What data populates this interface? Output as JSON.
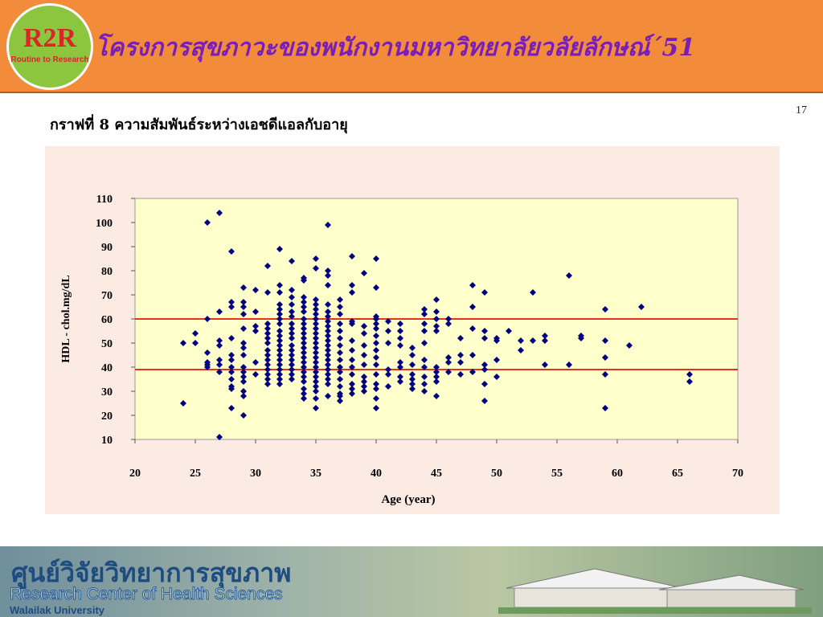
{
  "header": {
    "title": "โครงการสุขภาวะของพนักงานมหาวิทยาลัยวลัยลักษณ์´51",
    "logo_text": "R2R",
    "logo_ring_text": "Routine to Research"
  },
  "slide": {
    "page_number": "17",
    "subtitle": "กราฟที่ 8 ความสัมพันธ์ระหว่างเอชดีแอลกับอายุ"
  },
  "chart_data": {
    "type": "scatter",
    "title": "",
    "xlabel": "Age (year)",
    "ylabel": "HDL - chol.mg/dL",
    "xlim": [
      20,
      70
    ],
    "ylim": [
      10,
      110
    ],
    "xticks": [
      "20",
      "25",
      "30",
      "35",
      "40",
      "45",
      "50",
      "55",
      "60",
      "65",
      "70"
    ],
    "yticks": [
      "10",
      "20",
      "30",
      "40",
      "50",
      "60",
      "70",
      "80",
      "90",
      "100",
      "110"
    ],
    "reference_lines": [
      {
        "y": 60
      },
      {
        "y": 39
      }
    ],
    "colors": {
      "points": "#000080",
      "lines": "#e0361a",
      "plot_bg": "#ffffcc"
    },
    "points": [
      [
        24,
        50
      ],
      [
        24,
        25
      ],
      [
        25,
        54
      ],
      [
        25,
        50
      ],
      [
        26,
        100
      ],
      [
        26,
        60
      ],
      [
        26,
        46
      ],
      [
        26,
        42
      ],
      [
        26,
        41
      ],
      [
        26,
        40
      ],
      [
        27,
        104
      ],
      [
        27,
        63
      ],
      [
        27,
        51
      ],
      [
        27,
        49
      ],
      [
        27,
        43
      ],
      [
        27,
        41
      ],
      [
        27,
        38
      ],
      [
        27,
        11
      ],
      [
        28,
        88
      ],
      [
        28,
        67
      ],
      [
        28,
        65
      ],
      [
        28,
        52
      ],
      [
        28,
        45
      ],
      [
        28,
        43
      ],
      [
        28,
        40
      ],
      [
        28,
        38
      ],
      [
        28,
        35
      ],
      [
        28,
        32
      ],
      [
        28,
        31
      ],
      [
        28,
        23
      ],
      [
        29,
        73
      ],
      [
        29,
        67
      ],
      [
        29,
        65
      ],
      [
        29,
        62
      ],
      [
        29,
        56
      ],
      [
        29,
        50
      ],
      [
        29,
        48
      ],
      [
        29,
        45
      ],
      [
        29,
        40
      ],
      [
        29,
        38
      ],
      [
        29,
        36
      ],
      [
        29,
        34
      ],
      [
        29,
        30
      ],
      [
        29,
        28
      ],
      [
        29,
        20
      ],
      [
        30,
        72
      ],
      [
        30,
        63
      ],
      [
        30,
        57
      ],
      [
        30,
        55
      ],
      [
        30,
        42
      ],
      [
        30,
        37
      ],
      [
        31,
        82
      ],
      [
        31,
        71
      ],
      [
        31,
        58
      ],
      [
        31,
        56
      ],
      [
        31,
        54
      ],
      [
        31,
        52
      ],
      [
        31,
        50
      ],
      [
        31,
        47
      ],
      [
        31,
        45
      ],
      [
        31,
        43
      ],
      [
        31,
        41
      ],
      [
        31,
        39
      ],
      [
        31,
        37
      ],
      [
        31,
        35
      ],
      [
        31,
        33
      ],
      [
        32,
        89
      ],
      [
        32,
        74
      ],
      [
        32,
        71
      ],
      [
        32,
        66
      ],
      [
        32,
        64
      ],
      [
        32,
        62
      ],
      [
        32,
        60
      ],
      [
        32,
        58
      ],
      [
        32,
        55
      ],
      [
        32,
        53
      ],
      [
        32,
        51
      ],
      [
        32,
        49
      ],
      [
        32,
        47
      ],
      [
        32,
        45
      ],
      [
        32,
        43
      ],
      [
        32,
        41
      ],
      [
        32,
        39
      ],
      [
        32,
        37
      ],
      [
        32,
        35
      ],
      [
        32,
        33
      ],
      [
        33,
        84
      ],
      [
        33,
        72
      ],
      [
        33,
        69
      ],
      [
        33,
        66
      ],
      [
        33,
        63
      ],
      [
        33,
        61
      ],
      [
        33,
        58
      ],
      [
        33,
        56
      ],
      [
        33,
        54
      ],
      [
        33,
        52
      ],
      [
        33,
        49
      ],
      [
        33,
        47
      ],
      [
        33,
        45
      ],
      [
        33,
        43
      ],
      [
        33,
        41
      ],
      [
        33,
        39
      ],
      [
        33,
        37
      ],
      [
        33,
        35
      ],
      [
        34,
        77
      ],
      [
        34,
        76
      ],
      [
        34,
        69
      ],
      [
        34,
        67
      ],
      [
        34,
        65
      ],
      [
        34,
        63
      ],
      [
        34,
        60
      ],
      [
        34,
        58
      ],
      [
        34,
        56
      ],
      [
        34,
        54
      ],
      [
        34,
        52
      ],
      [
        34,
        50
      ],
      [
        34,
        48
      ],
      [
        34,
        46
      ],
      [
        34,
        44
      ],
      [
        34,
        42
      ],
      [
        34,
        40
      ],
      [
        34,
        38
      ],
      [
        34,
        36
      ],
      [
        34,
        34
      ],
      [
        34,
        31
      ],
      [
        34,
        29
      ],
      [
        34,
        27
      ],
      [
        35,
        85
      ],
      [
        35,
        81
      ],
      [
        35,
        68
      ],
      [
        35,
        66
      ],
      [
        35,
        64
      ],
      [
        35,
        62
      ],
      [
        35,
        60
      ],
      [
        35,
        58
      ],
      [
        35,
        56
      ],
      [
        35,
        54
      ],
      [
        35,
        52
      ],
      [
        35,
        50
      ],
      [
        35,
        48
      ],
      [
        35,
        46
      ],
      [
        35,
        44
      ],
      [
        35,
        42
      ],
      [
        35,
        40
      ],
      [
        35,
        38
      ],
      [
        35,
        36
      ],
      [
        35,
        34
      ],
      [
        35,
        32
      ],
      [
        35,
        30
      ],
      [
        35,
        27
      ],
      [
        35,
        23
      ],
      [
        36,
        99
      ],
      [
        36,
        80
      ],
      [
        36,
        78
      ],
      [
        36,
        74
      ],
      [
        36,
        66
      ],
      [
        36,
        63
      ],
      [
        36,
        61
      ],
      [
        36,
        59
      ],
      [
        36,
        57
      ],
      [
        36,
        55
      ],
      [
        36,
        53
      ],
      [
        36,
        51
      ],
      [
        36,
        49
      ],
      [
        36,
        47
      ],
      [
        36,
        45
      ],
      [
        36,
        43
      ],
      [
        36,
        41
      ],
      [
        36,
        39
      ],
      [
        36,
        37
      ],
      [
        36,
        35
      ],
      [
        36,
        33
      ],
      [
        36,
        28
      ],
      [
        37,
        68
      ],
      [
        37,
        65
      ],
      [
        37,
        62
      ],
      [
        37,
        58
      ],
      [
        37,
        55
      ],
      [
        37,
        52
      ],
      [
        37,
        49
      ],
      [
        37,
        46
      ],
      [
        37,
        43
      ],
      [
        37,
        40
      ],
      [
        37,
        38
      ],
      [
        37,
        35
      ],
      [
        37,
        32
      ],
      [
        37,
        29
      ],
      [
        37,
        28
      ],
      [
        37,
        26
      ],
      [
        38,
        86
      ],
      [
        38,
        74
      ],
      [
        38,
        71
      ],
      [
        38,
        59
      ],
      [
        38,
        58
      ],
      [
        38,
        51
      ],
      [
        38,
        47
      ],
      [
        38,
        43
      ],
      [
        38,
        40
      ],
      [
        38,
        37
      ],
      [
        38,
        33
      ],
      [
        38,
        31
      ],
      [
        38,
        29
      ],
      [
        39,
        79
      ],
      [
        39,
        57
      ],
      [
        39,
        54
      ],
      [
        39,
        49
      ],
      [
        39,
        45
      ],
      [
        39,
        41
      ],
      [
        39,
        36
      ],
      [
        39,
        34
      ],
      [
        39,
        32
      ],
      [
        39,
        30
      ],
      [
        40,
        85
      ],
      [
        40,
        73
      ],
      [
        40,
        61
      ],
      [
        40,
        60
      ],
      [
        40,
        58
      ],
      [
        40,
        56
      ],
      [
        40,
        53
      ],
      [
        40,
        50
      ],
      [
        40,
        47
      ],
      [
        40,
        44
      ],
      [
        40,
        41
      ],
      [
        40,
        37
      ],
      [
        40,
        33
      ],
      [
        40,
        31
      ],
      [
        40,
        27
      ],
      [
        40,
        23
      ],
      [
        41,
        59
      ],
      [
        41,
        55
      ],
      [
        41,
        50
      ],
      [
        41,
        39
      ],
      [
        41,
        37
      ],
      [
        41,
        32
      ],
      [
        42,
        58
      ],
      [
        42,
        55
      ],
      [
        42,
        52
      ],
      [
        42,
        49
      ],
      [
        42,
        42
      ],
      [
        42,
        40
      ],
      [
        42,
        36
      ],
      [
        42,
        34
      ],
      [
        43,
        48
      ],
      [
        43,
        45
      ],
      [
        43,
        41
      ],
      [
        43,
        37
      ],
      [
        43,
        35
      ],
      [
        43,
        33
      ],
      [
        43,
        31
      ],
      [
        44,
        64
      ],
      [
        44,
        62
      ],
      [
        44,
        58
      ],
      [
        44,
        55
      ],
      [
        44,
        50
      ],
      [
        44,
        43
      ],
      [
        44,
        40
      ],
      [
        44,
        36
      ],
      [
        44,
        33
      ],
      [
        44,
        30
      ],
      [
        45,
        68
      ],
      [
        45,
        63
      ],
      [
        45,
        60
      ],
      [
        45,
        57
      ],
      [
        45,
        55
      ],
      [
        45,
        40
      ],
      [
        45,
        38
      ],
      [
        45,
        36
      ],
      [
        45,
        34
      ],
      [
        45,
        28
      ],
      [
        46,
        60
      ],
      [
        46,
        58
      ],
      [
        46,
        44
      ],
      [
        46,
        42
      ],
      [
        46,
        38
      ],
      [
        47,
        52
      ],
      [
        47,
        45
      ],
      [
        47,
        42
      ],
      [
        47,
        37
      ],
      [
        48,
        74
      ],
      [
        48,
        65
      ],
      [
        48,
        56
      ],
      [
        48,
        45
      ],
      [
        48,
        38
      ],
      [
        49,
        71
      ],
      [
        49,
        55
      ],
      [
        49,
        52
      ],
      [
        49,
        41
      ],
      [
        49,
        39
      ],
      [
        49,
        33
      ],
      [
        49,
        26
      ],
      [
        50,
        52
      ],
      [
        50,
        51
      ],
      [
        50,
        43
      ],
      [
        50,
        36
      ],
      [
        51,
        55
      ],
      [
        52,
        51
      ],
      [
        52,
        47
      ],
      [
        53,
        71
      ],
      [
        53,
        51
      ],
      [
        54,
        53
      ],
      [
        54,
        51
      ],
      [
        54,
        41
      ],
      [
        56,
        78
      ],
      [
        56,
        41
      ],
      [
        57,
        53
      ],
      [
        57,
        52
      ],
      [
        59,
        64
      ],
      [
        59,
        51
      ],
      [
        59,
        44
      ],
      [
        59,
        37
      ],
      [
        59,
        23
      ],
      [
        61,
        49
      ],
      [
        62,
        65
      ],
      [
        66,
        37
      ],
      [
        66,
        34
      ]
    ]
  },
  "footer": {
    "thai_name": "ศูนย์วิจัยวิทยาการสุขภาพ",
    "english_name": "Research Center of Health Sciences",
    "university": "Walailak University"
  }
}
